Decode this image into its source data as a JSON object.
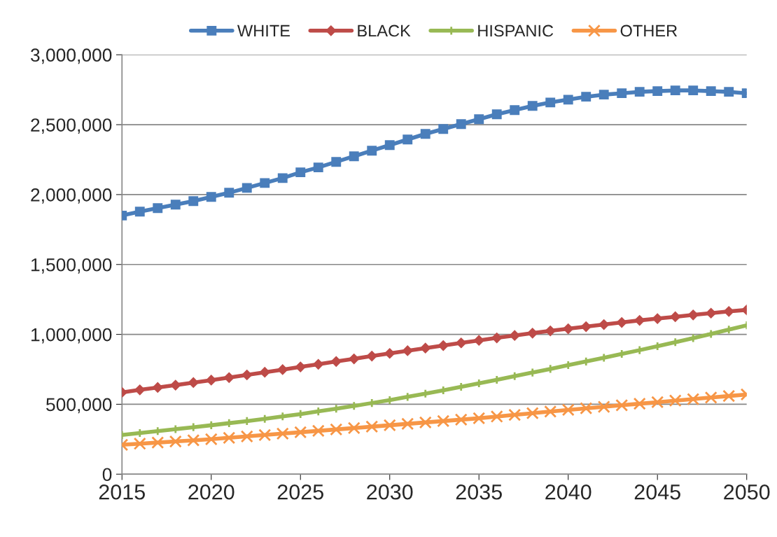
{
  "chart_data": {
    "type": "line",
    "x": [
      2015,
      2016,
      2017,
      2018,
      2019,
      2020,
      2021,
      2022,
      2023,
      2024,
      2025,
      2026,
      2027,
      2028,
      2029,
      2030,
      2031,
      2032,
      2033,
      2034,
      2035,
      2036,
      2037,
      2038,
      2039,
      2040,
      2041,
      2042,
      2043,
      2044,
      2045,
      2046,
      2047,
      2048,
      2049,
      2050
    ],
    "series": [
      {
        "name": "WHITE",
        "color": "#4a7ebb",
        "marker": "square",
        "values": [
          1850000,
          1878000,
          1903000,
          1928000,
          1953000,
          1983000,
          2013000,
          2048000,
          2083000,
          2118000,
          2159000,
          2194000,
          2234000,
          2274000,
          2314000,
          2354000,
          2394000,
          2434000,
          2469000,
          2504000,
          2539000,
          2574000,
          2604000,
          2634000,
          2659000,
          2679000,
          2700000,
          2715000,
          2725000,
          2735000,
          2740000,
          2745000,
          2745000,
          2740000,
          2735000,
          2725000
        ]
      },
      {
        "name": "BLACK",
        "color": "#be4b48",
        "marker": "diamond",
        "values": [
          585000,
          603000,
          620000,
          637000,
          655000,
          673000,
          691000,
          710000,
          729000,
          748000,
          767000,
          786000,
          806000,
          825000,
          845000,
          864000,
          883000,
          902000,
          920000,
          939000,
          957000,
          975000,
          992000,
          1009000,
          1025000,
          1040000,
          1055000,
          1070000,
          1085000,
          1100000,
          1113000,
          1126000,
          1139000,
          1152000,
          1164000,
          1175000
        ]
      },
      {
        "name": "HISPANIC",
        "color": "#98b954",
        "marker": "plus",
        "values": [
          280000,
          294000,
          308000,
          322000,
          336000,
          350000,
          365000,
          380000,
          396000,
          413000,
          430000,
          449000,
          468000,
          488000,
          509000,
          530000,
          553000,
          576000,
          600000,
          625000,
          650000,
          675000,
          701000,
          727000,
          753000,
          780000,
          806000,
          833000,
          860000,
          887000,
          915000,
          944000,
          973000,
          1003000,
          1034000,
          1065000
        ]
      },
      {
        "name": "OTHER",
        "color": "#f79646",
        "marker": "cross",
        "values": [
          210000,
          218000,
          226000,
          234000,
          242000,
          250000,
          260000,
          270000,
          280000,
          290000,
          300000,
          310000,
          320000,
          330000,
          340000,
          350000,
          360000,
          370000,
          380000,
          390000,
          400000,
          412000,
          424000,
          436000,
          448000,
          460000,
          471000,
          482000,
          493000,
          504000,
          515000,
          526000,
          537000,
          548000,
          559000,
          570000
        ]
      }
    ],
    "xlim": [
      2015,
      2050
    ],
    "xticks": [
      2015,
      2020,
      2025,
      2030,
      2035,
      2040,
      2045,
      2050
    ],
    "ylim": [
      0,
      3000000
    ],
    "yticks": [
      {
        "value": 0,
        "label": "0"
      },
      {
        "value": 500000,
        "label": "500,000"
      },
      {
        "value": 1000000,
        "label": "1,000,000"
      },
      {
        "value": 1500000,
        "label": "1,500,000"
      },
      {
        "value": 2000000,
        "label": "2,000,000"
      },
      {
        "value": 2500000,
        "label": "2,500,000"
      },
      {
        "value": 3000000,
        "label": "3,000,000"
      }
    ],
    "grid": "y",
    "legend": "top",
    "line_style": "solid"
  }
}
